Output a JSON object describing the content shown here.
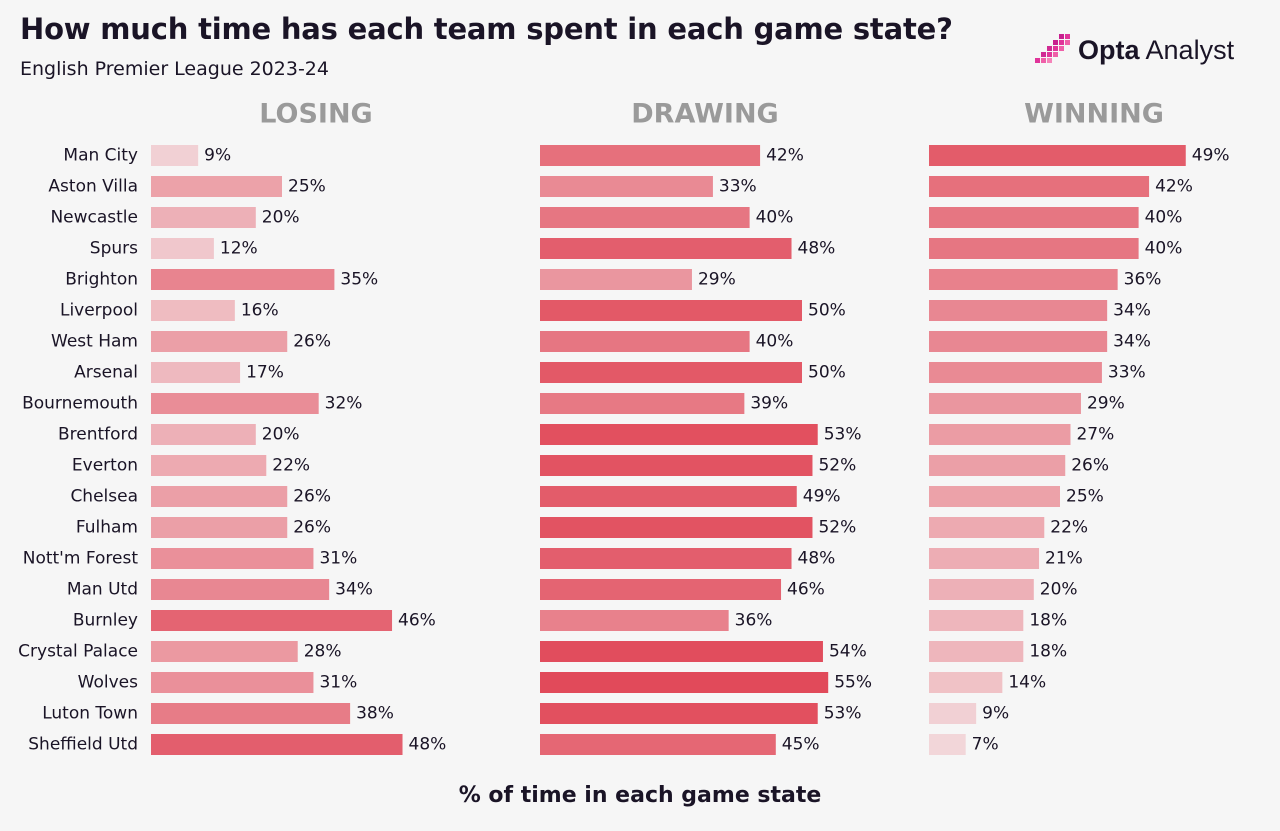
{
  "title": "How much time has each team spent in each game state?",
  "subtitle": "English Premier League 2023-24",
  "logo": {
    "brand": "Opta",
    "product": "Analyst"
  },
  "chart_data": {
    "type": "bar",
    "orientation": "horizontal",
    "unit": "%",
    "xlabel": "% of time in each game state",
    "categories": [
      "Man City",
      "Aston Villa",
      "Newcastle",
      "Spurs",
      "Brighton",
      "Liverpool",
      "West Ham",
      "Arsenal",
      "Bournemouth",
      "Brentford",
      "Everton",
      "Chelsea",
      "Fulham",
      "Nott'm Forest",
      "Man Utd",
      "Burnley",
      "Crystal Palace",
      "Wolves",
      "Luton Town",
      "Sheffield Utd"
    ],
    "series": [
      {
        "name": "LOSING",
        "values": [
          9,
          25,
          20,
          12,
          35,
          16,
          26,
          17,
          32,
          20,
          22,
          26,
          26,
          31,
          34,
          46,
          28,
          31,
          38,
          48
        ]
      },
      {
        "name": "DRAWING",
        "values": [
          42,
          33,
          40,
          48,
          29,
          50,
          40,
          50,
          39,
          53,
          52,
          49,
          52,
          48,
          46,
          36,
          54,
          55,
          53,
          45
        ]
      },
      {
        "name": "WINNING",
        "values": [
          49,
          42,
          40,
          40,
          36,
          34,
          34,
          33,
          29,
          27,
          26,
          25,
          22,
          21,
          20,
          18,
          18,
          14,
          9,
          7
        ]
      }
    ],
    "color_low": "#f2d6d9",
    "color_high": "#e14a5a",
    "header_color": "#9a9a9a"
  }
}
